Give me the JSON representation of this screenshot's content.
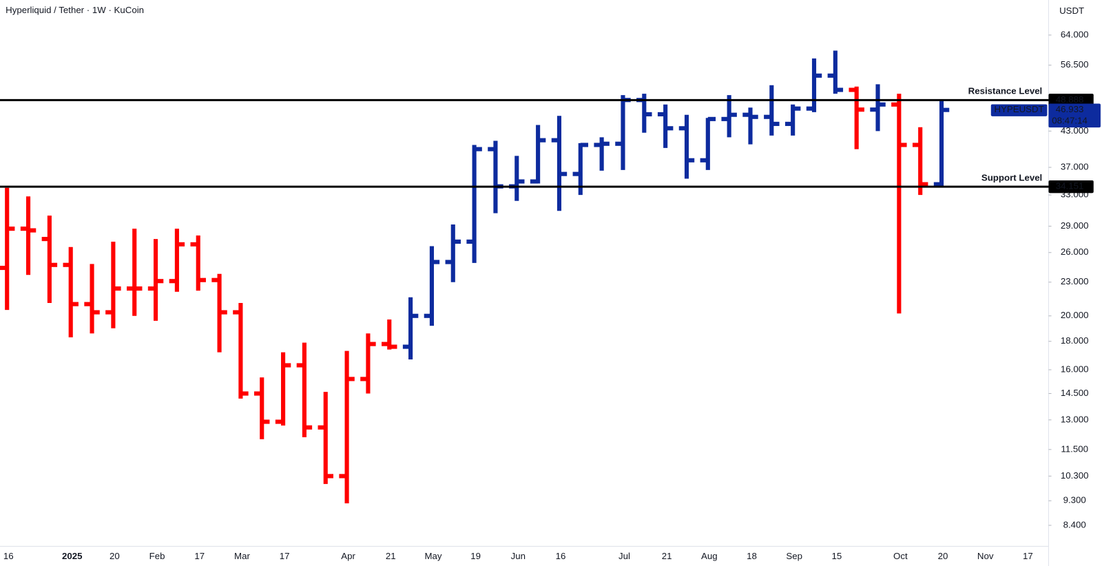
{
  "chart_data": {
    "type": "ohlc",
    "title": "Hyperliquid / Tether · 1W · KuCoin",
    "y_unit": "USDT",
    "countdown": "08:47:14",
    "categories": [
      "16",
      null,
      null,
      "2025",
      null,
      "20",
      null,
      "Feb",
      null,
      "17",
      null,
      "Mar",
      null,
      "17",
      null,
      null,
      "Apr",
      null,
      "21",
      null,
      "May",
      null,
      "19",
      null,
      "Jun",
      null,
      "16",
      null,
      null,
      "Jul",
      null,
      "21",
      null,
      "Aug",
      null,
      "18",
      null,
      "Sep",
      null,
      "15",
      null,
      null,
      "Oct",
      null,
      "20",
      null,
      "Nov",
      null,
      "17"
    ],
    "series": [
      {
        "name": "HYPEUSDT",
        "color": "#0d2b9e",
        "open": [
          24.4,
          28.7,
          27.5,
          24.7,
          21.0,
          20.3,
          22.4,
          22.4,
          23.1,
          26.9,
          23.2,
          20.3,
          14.5,
          12.9,
          16.3,
          12.6,
          10.3,
          15.4,
          17.8,
          17.6,
          20.0,
          25.0,
          27.2,
          39.9,
          34.2,
          34.9,
          41.4,
          36.0,
          40.6,
          40.8,
          48.9,
          46.1,
          43.5,
          38.1,
          45.2,
          46.0,
          45.6,
          44.3,
          47.2,
          54.1,
          51.0,
          47.0,
          48.0,
          40.6,
          34.5,
          null,
          null,
          null,
          null
        ],
        "high": [
          34.0,
          32.8,
          30.3,
          26.6,
          24.8,
          27.2,
          28.7,
          27.5,
          28.7,
          27.9,
          23.8,
          21.1,
          15.5,
          17.2,
          17.9,
          14.6,
          17.3,
          18.6,
          19.7,
          21.6,
          26.7,
          29.2,
          40.6,
          41.3,
          38.8,
          44.1,
          45.8,
          40.9,
          41.9,
          49.9,
          50.2,
          48.0,
          46.0,
          45.4,
          49.9,
          47.4,
          52.0,
          48.0,
          58.1,
          60.0,
          51.7,
          52.2,
          50.2,
          43.7,
          48.7,
          null,
          null,
          null,
          null
        ],
        "low": [
          20.5,
          23.7,
          21.1,
          18.3,
          18.6,
          19.0,
          20.0,
          19.6,
          22.1,
          22.2,
          17.2,
          14.2,
          12.0,
          12.7,
          12.1,
          9.97,
          9.2,
          14.5,
          17.4,
          16.7,
          19.2,
          23.0,
          24.9,
          30.6,
          32.2,
          34.6,
          30.9,
          33.0,
          36.5,
          36.6,
          42.7,
          40.1,
          35.3,
          36.6,
          41.9,
          40.7,
          42.2,
          42.2,
          46.5,
          50.2,
          39.9,
          43.0,
          20.2,
          33.0,
          34.15,
          null,
          null,
          null,
          null
        ],
        "close": [
          28.7,
          28.5,
          24.7,
          21.0,
          20.3,
          22.4,
          22.4,
          23.1,
          26.9,
          23.2,
          20.3,
          14.5,
          12.9,
          16.3,
          12.6,
          10.3,
          15.4,
          17.8,
          17.6,
          20.0,
          25.0,
          27.2,
          39.9,
          34.2,
          34.9,
          41.4,
          36.0,
          40.6,
          40.8,
          48.9,
          46.1,
          43.5,
          38.1,
          45.2,
          46.0,
          45.6,
          44.3,
          47.2,
          54.1,
          51.0,
          47.0,
          48.0,
          40.6,
          34.5,
          46.933,
          null,
          null,
          null,
          null
        ],
        "colors": [
          "#ff0000",
          "#ff0000",
          "#ff0000",
          "#ff0000",
          "#ff0000",
          "#ff0000",
          "#ff0000",
          "#ff0000",
          "#ff0000",
          "#ff0000",
          "#ff0000",
          "#ff0000",
          "#ff0000",
          "#ff0000",
          "#ff0000",
          "#ff0000",
          "#ff0000",
          "#ff0000",
          "#ff0000",
          "#0d2b9e",
          "#0d2b9e",
          "#0d2b9e",
          "#0d2b9e",
          "#0d2b9e",
          "#0d2b9e",
          "#0d2b9e",
          "#0d2b9e",
          "#0d2b9e",
          "#0d2b9e",
          "#0d2b9e",
          "#0d2b9e",
          "#0d2b9e",
          "#0d2b9e",
          "#0d2b9e",
          "#0d2b9e",
          "#0d2b9e",
          "#0d2b9e",
          "#0d2b9e",
          "#0d2b9e",
          "#0d2b9e",
          "#ff0000",
          "#0d2b9e",
          "#ff0000",
          "#ff0000",
          "#0d2b9e",
          null,
          null,
          null,
          null
        ]
      }
    ],
    "levels": [
      {
        "name": "Resistance Level",
        "value": 48.888
      },
      {
        "name": "Support Level",
        "value": 34.151
      }
    ],
    "level_color": "#000000",
    "level_label_color": "#0d2b9e",
    "log_scale": true,
    "ylim": [
      7.7,
      74
    ],
    "yticks": [
      {
        "value": 64,
        "label": "64.000"
      },
      {
        "value": 56.5,
        "label": "56.500"
      },
      {
        "value": 43,
        "label": "43.000"
      },
      {
        "value": 37,
        "label": "37.000"
      },
      {
        "value": 33,
        "label": "33.000"
      },
      {
        "value": 29,
        "label": "29.000"
      },
      {
        "value": 26,
        "label": "26.000"
      },
      {
        "value": 23,
        "label": "23.000"
      },
      {
        "value": 20,
        "label": "20.000"
      },
      {
        "value": 18,
        "label": "18.000"
      },
      {
        "value": 16,
        "label": "16.000"
      },
      {
        "value": 14.5,
        "label": "14.500"
      },
      {
        "value": 13,
        "label": "13.000"
      },
      {
        "value": 11.5,
        "label": "11.500"
      },
      {
        "value": 10.3,
        "label": "10.300"
      },
      {
        "value": 9.3,
        "label": "9.300"
      },
      {
        "value": 8.4,
        "label": "8.400"
      }
    ]
  }
}
